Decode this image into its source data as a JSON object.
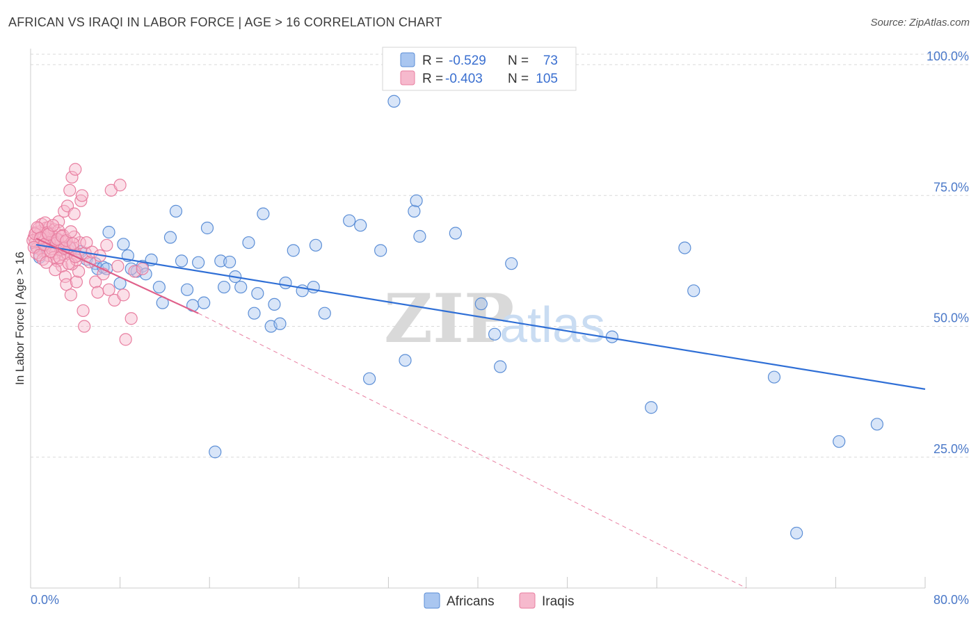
{
  "header": {
    "title": "AFRICAN VS IRAQI IN LABOR FORCE | AGE > 16 CORRELATION CHART",
    "source": "Source: ZipAtlas.com"
  },
  "legend": {
    "r_label": "R =",
    "n_label": "N =",
    "series": [
      {
        "name": "Africans",
        "r": "-0.529",
        "n": "73"
      },
      {
        "name": "Iraqis",
        "r": "-0.403",
        "n": "105"
      }
    ]
  },
  "watermark": {
    "zip": "ZIP",
    "atlas": "atlas"
  },
  "colors": {
    "africans_fill": "#a9c6f0",
    "africans_stroke": "#5b8ed6",
    "africans_line": "#2f6fd6",
    "iraqis_fill": "#f6b9cd",
    "iraqis_stroke": "#e87ea0",
    "iraqis_line": "#e0608a",
    "grid": "#d9d9d9",
    "tick_text": "#4a78c8"
  },
  "chart_data": {
    "type": "scatter",
    "title": "AFRICAN VS IRAQI IN LABOR FORCE | AGE > 16 CORRELATION CHART",
    "xlabel": "",
    "ylabel": "In Labor Force | Age > 16",
    "xlim": [
      0,
      80
    ],
    "ylim": [
      0,
      100
    ],
    "x_tick_labels": [
      "0.0%",
      "80.0%"
    ],
    "y_ticks": [
      25,
      50,
      75,
      100
    ],
    "y_tick_labels": [
      "25.0%",
      "50.0%",
      "75.0%",
      "100.0%"
    ],
    "x_minor_ticks": [
      0,
      8,
      16,
      24,
      32,
      40,
      48,
      56,
      64,
      72,
      80
    ],
    "legend_position": "top-center",
    "series": [
      {
        "name": "Africans",
        "trend": {
          "x": [
            0.5,
            80
          ],
          "y": [
            65.6,
            38.0
          ]
        },
        "points": [
          [
            0.5,
            65.2
          ],
          [
            1.5,
            66.0
          ],
          [
            3.5,
            65.0
          ],
          [
            4.5,
            64.3
          ],
          [
            5.0,
            62.8
          ],
          [
            5.8,
            62.0
          ],
          [
            6.0,
            61.0
          ],
          [
            6.5,
            61.3
          ],
          [
            7.0,
            68.0
          ],
          [
            8.0,
            58.2
          ],
          [
            8.3,
            65.7
          ],
          [
            8.7,
            63.5
          ],
          [
            9.5,
            60.5
          ],
          [
            10.0,
            61.5
          ],
          [
            10.3,
            60.0
          ],
          [
            10.8,
            62.7
          ],
          [
            11.5,
            57.5
          ],
          [
            11.8,
            54.5
          ],
          [
            12.5,
            67.0
          ],
          [
            13.0,
            72.0
          ],
          [
            13.5,
            62.5
          ],
          [
            14.0,
            57.0
          ],
          [
            14.5,
            54.0
          ],
          [
            15.0,
            62.2
          ],
          [
            15.5,
            54.5
          ],
          [
            15.8,
            68.8
          ],
          [
            16.5,
            26.0
          ],
          [
            17.0,
            62.5
          ],
          [
            17.3,
            57.5
          ],
          [
            17.8,
            62.3
          ],
          [
            18.3,
            59.5
          ],
          [
            18.8,
            57.5
          ],
          [
            19.5,
            66.0
          ],
          [
            20.0,
            52.5
          ],
          [
            20.3,
            56.3
          ],
          [
            20.8,
            71.5
          ],
          [
            21.5,
            50.0
          ],
          [
            21.8,
            54.2
          ],
          [
            22.3,
            50.5
          ],
          [
            22.8,
            58.3
          ],
          [
            23.5,
            64.5
          ],
          [
            24.3,
            56.8
          ],
          [
            25.3,
            57.5
          ],
          [
            25.5,
            65.5
          ],
          [
            26.3,
            52.5
          ],
          [
            28.5,
            70.2
          ],
          [
            29.5,
            69.3
          ],
          [
            30.3,
            40.0
          ],
          [
            31.3,
            64.5
          ],
          [
            32.5,
            93.0
          ],
          [
            33.5,
            43.5
          ],
          [
            34.3,
            72.0
          ],
          [
            34.5,
            74.0
          ],
          [
            34.8,
            67.2
          ],
          [
            38.0,
            67.8
          ],
          [
            40.3,
            54.3
          ],
          [
            41.5,
            48.5
          ],
          [
            42.0,
            42.3
          ],
          [
            43.0,
            62.0
          ],
          [
            52.0,
            48.0
          ],
          [
            55.5,
            34.5
          ],
          [
            58.5,
            65.0
          ],
          [
            59.3,
            56.8
          ],
          [
            66.5,
            40.3
          ],
          [
            68.5,
            10.5
          ],
          [
            72.3,
            28.0
          ],
          [
            75.7,
            31.3
          ],
          [
            1.0,
            65.5
          ],
          [
            2.2,
            66.2
          ],
          [
            3.0,
            64.8
          ],
          [
            0.8,
            63.2
          ],
          [
            6.8,
            61.0
          ],
          [
            9.0,
            61.0
          ]
        ]
      },
      {
        "name": "Iraqis",
        "trend": {
          "x": [
            0.5,
            15
          ],
          "y": [
            66.8,
            52.5
          ]
        },
        "trend_extended": {
          "x": [
            15,
            64
          ],
          "y": [
            52.5,
            0
          ]
        },
        "points": [
          [
            0.3,
            67.0
          ],
          [
            0.4,
            66.0
          ],
          [
            0.5,
            68.0
          ],
          [
            0.6,
            65.0
          ],
          [
            0.7,
            67.5
          ],
          [
            0.8,
            66.5
          ],
          [
            0.9,
            68.2
          ],
          [
            1.0,
            69.5
          ],
          [
            1.0,
            64.5
          ],
          [
            1.1,
            66.8
          ],
          [
            1.2,
            67.3
          ],
          [
            1.3,
            65.7
          ],
          [
            1.4,
            68.8
          ],
          [
            1.5,
            66.2
          ],
          [
            1.6,
            63.5
          ],
          [
            1.7,
            69.0
          ],
          [
            1.8,
            67.8
          ],
          [
            1.9,
            65.3
          ],
          [
            2.0,
            66.7
          ],
          [
            2.1,
            68.5
          ],
          [
            2.2,
            64.0
          ],
          [
            2.3,
            67.0
          ],
          [
            2.4,
            62.5
          ],
          [
            2.5,
            70.0
          ],
          [
            2.6,
            65.5
          ],
          [
            2.7,
            66.3
          ],
          [
            2.8,
            61.5
          ],
          [
            2.9,
            63.8
          ],
          [
            3.0,
            72.0
          ],
          [
            3.1,
            59.5
          ],
          [
            3.2,
            58.0
          ],
          [
            3.3,
            73.0
          ],
          [
            3.4,
            64.5
          ],
          [
            3.5,
            76.0
          ],
          [
            3.6,
            56.0
          ],
          [
            3.7,
            78.5
          ],
          [
            3.8,
            65.0
          ],
          [
            3.9,
            71.5
          ],
          [
            4.0,
            80.0
          ],
          [
            4.1,
            58.5
          ],
          [
            4.2,
            63.5
          ],
          [
            4.3,
            60.5
          ],
          [
            4.4,
            66.0
          ],
          [
            4.5,
            74.0
          ],
          [
            4.6,
            75.0
          ],
          [
            4.7,
            53.0
          ],
          [
            4.8,
            50.0
          ],
          [
            4.9,
            64.0
          ],
          [
            5.0,
            66.0
          ],
          [
            5.3,
            62.3
          ],
          [
            5.5,
            64.2
          ],
          [
            5.8,
            58.5
          ],
          [
            6.0,
            56.5
          ],
          [
            6.2,
            63.5
          ],
          [
            6.5,
            60.0
          ],
          [
            6.8,
            65.5
          ],
          [
            7.0,
            57.0
          ],
          [
            7.2,
            76.0
          ],
          [
            7.5,
            55.0
          ],
          [
            7.8,
            61.5
          ],
          [
            8.0,
            77.0
          ],
          [
            8.3,
            56.0
          ],
          [
            8.5,
            47.5
          ],
          [
            9.0,
            51.5
          ],
          [
            9.3,
            60.5
          ],
          [
            10.0,
            61.0
          ],
          [
            0.5,
            64.0
          ],
          [
            0.7,
            68.7
          ],
          [
            1.1,
            62.8
          ],
          [
            1.3,
            69.8
          ],
          [
            1.5,
            67.9
          ],
          [
            1.7,
            66.0
          ],
          [
            1.9,
            64.8
          ],
          [
            2.1,
            63.2
          ],
          [
            2.3,
            65.9
          ],
          [
            2.5,
            68.3
          ],
          [
            2.7,
            64.6
          ],
          [
            2.9,
            67.4
          ],
          [
            3.1,
            66.1
          ],
          [
            3.3,
            63.9
          ],
          [
            3.5,
            65.2
          ],
          [
            3.7,
            61.9
          ],
          [
            3.9,
            67.1
          ],
          [
            4.1,
            62.7
          ],
          [
            0.2,
            66.4
          ],
          [
            0.3,
            65.1
          ],
          [
            0.4,
            67.7
          ],
          [
            0.6,
            68.9
          ],
          [
            0.8,
            63.6
          ],
          [
            0.9,
            66.9
          ],
          [
            1.2,
            65.6
          ],
          [
            1.4,
            62.2
          ],
          [
            1.6,
            67.6
          ],
          [
            1.8,
            64.3
          ],
          [
            2.0,
            69.3
          ],
          [
            2.2,
            60.8
          ],
          [
            2.4,
            66.6
          ],
          [
            2.6,
            63.1
          ],
          [
            2.8,
            67.2
          ],
          [
            3.0,
            64.9
          ],
          [
            3.2,
            66.4
          ],
          [
            3.4,
            62.0
          ],
          [
            3.6,
            68.1
          ],
          [
            3.8,
            65.8
          ],
          [
            4.0,
            63.3
          ]
        ]
      }
    ]
  },
  "bottom_legend": {
    "africans": "Africans",
    "iraqis": "Iraqis"
  }
}
